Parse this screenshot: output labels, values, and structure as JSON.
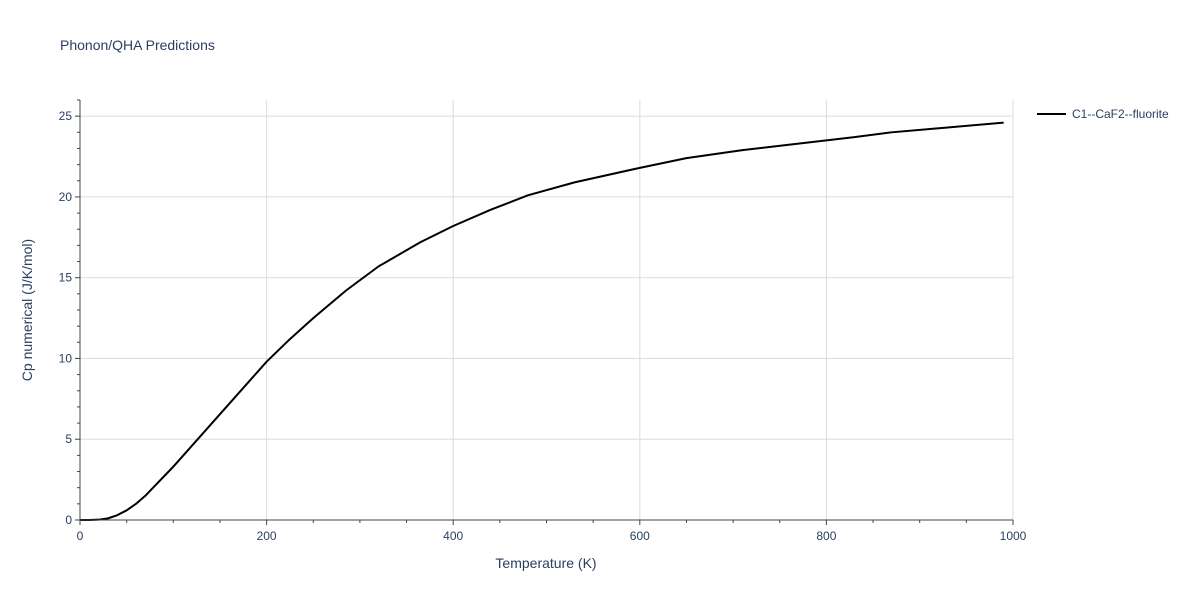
{
  "chart_data": {
    "type": "line",
    "title": "Phonon/QHA Predictions",
    "xlabel": "Temperature (K)",
    "ylabel": "Cp numerical (J/K/mol)",
    "xlim": [
      0,
      1000
    ],
    "ylim": [
      0,
      26
    ],
    "xticks": [
      0,
      200,
      400,
      600,
      800,
      1000
    ],
    "yticks": [
      0,
      5,
      10,
      15,
      20,
      25
    ],
    "xtick_labels": [
      "0",
      "200",
      "400",
      "600",
      "800",
      "1000"
    ],
    "ytick_labels": [
      "0",
      "5",
      "10",
      "15",
      "20",
      "25"
    ],
    "grid": true,
    "legend_position": "top-right-outside",
    "series": [
      {
        "name": "C1--CaF2--fluorite",
        "color": "#000000",
        "x": [
          0,
          10,
          20,
          30,
          40,
          50,
          60,
          70,
          80,
          90,
          100,
          120,
          140,
          160,
          180,
          200,
          225,
          250,
          285,
          320,
          365,
          400,
          440,
          480,
          530,
          600,
          650,
          710,
          770,
          830,
          870,
          930,
          990
        ],
        "y": [
          0,
          0,
          0.02,
          0.1,
          0.3,
          0.6,
          1.0,
          1.5,
          2.1,
          2.7,
          3.3,
          4.6,
          5.9,
          7.2,
          8.5,
          9.8,
          11.2,
          12.5,
          14.2,
          15.7,
          17.2,
          18.2,
          19.2,
          20.1,
          20.9,
          21.8,
          22.4,
          22.9,
          23.3,
          23.7,
          24.0,
          24.3,
          24.6
        ]
      }
    ]
  }
}
